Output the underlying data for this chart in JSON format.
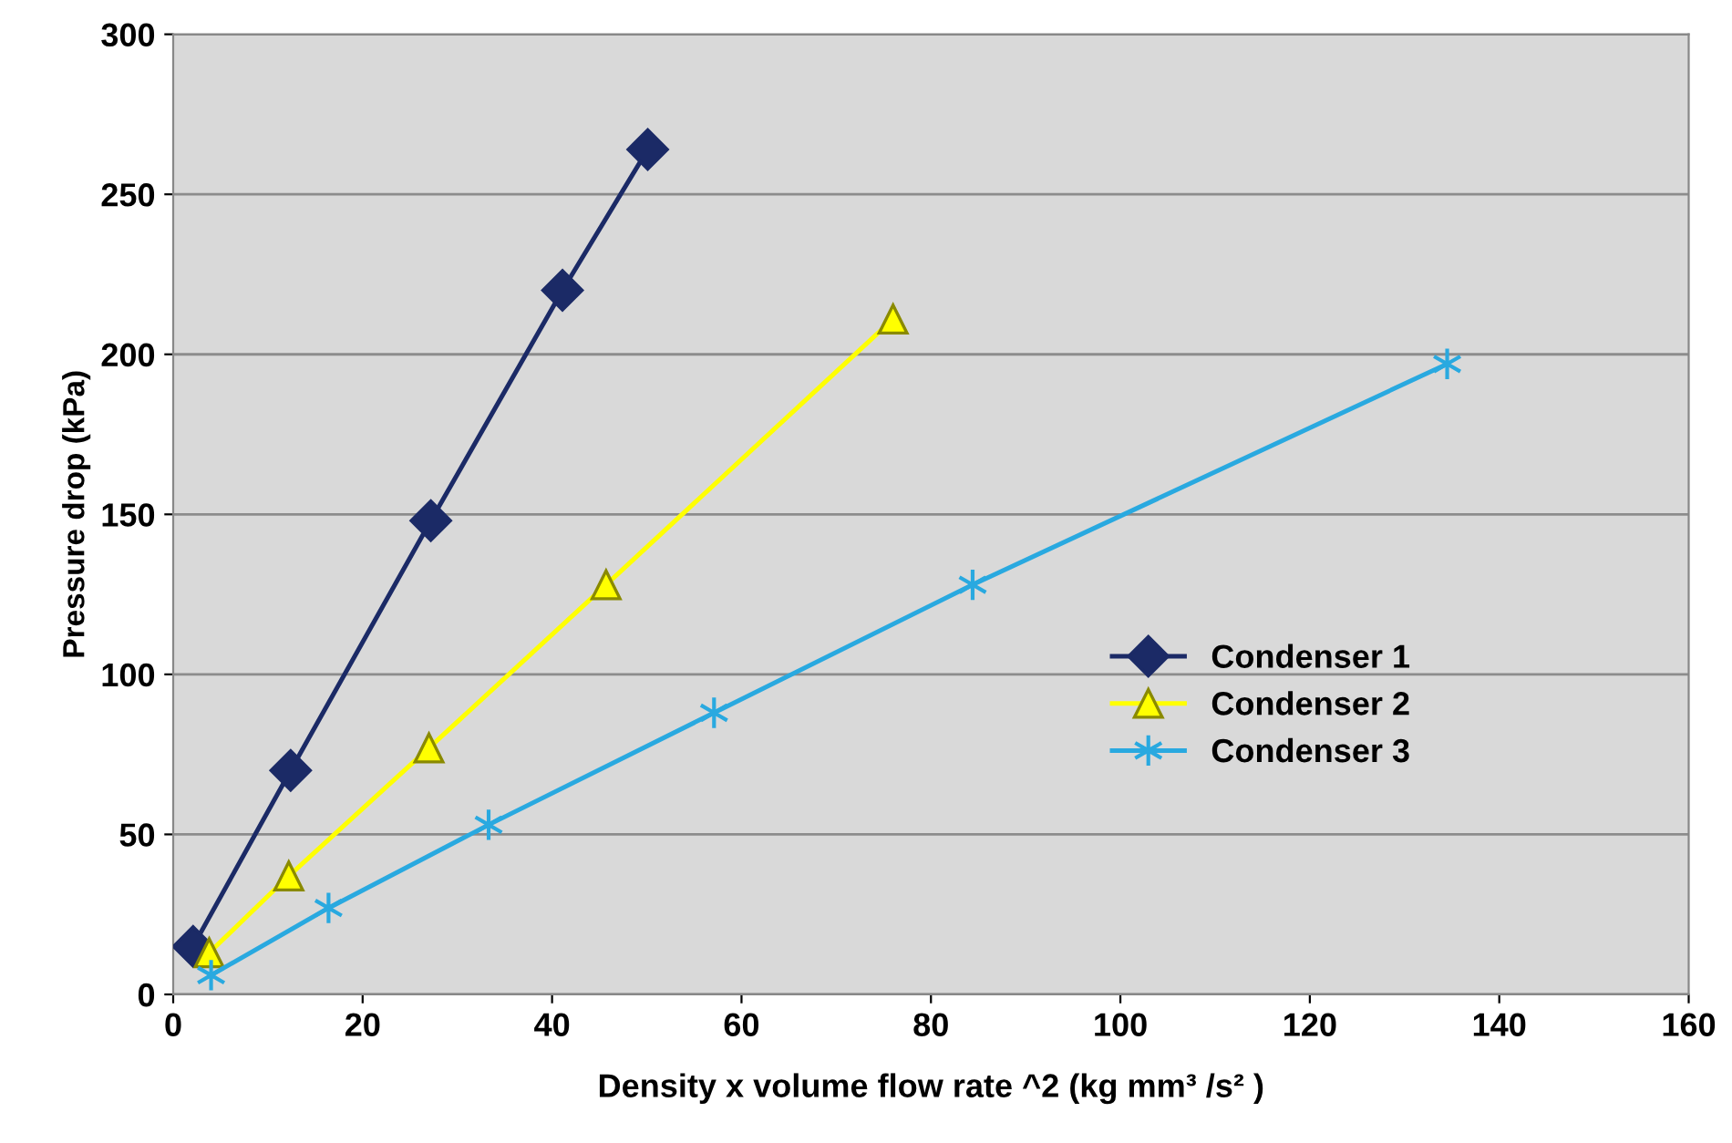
{
  "chart_data": {
    "type": "line",
    "xlabel": "Density x volume flow rate ^2 (kg mm³ /s² )",
    "ylabel": "Pressure drop (kPa)",
    "xlim": [
      0,
      160
    ],
    "xticks": [
      0,
      20,
      40,
      60,
      80,
      100,
      120,
      140,
      160
    ],
    "ylim": [
      0,
      300
    ],
    "yticks": [
      0,
      50,
      100,
      150,
      200,
      250,
      300
    ],
    "grid": "y",
    "legend": "right",
    "series": [
      {
        "name": "Condenser 1",
        "color": "#1b2a66",
        "marker": "diamond",
        "x": [
          2.1,
          12.4,
          27.2,
          41.1,
          50.1
        ],
        "values": [
          15,
          70,
          148,
          220,
          264
        ]
      },
      {
        "name": "Condenser 2",
        "color": "#ffff00",
        "marker": "triangle",
        "x": [
          3.8,
          12.2,
          27,
          45.7,
          76
        ],
        "values": [
          13,
          37,
          77,
          128,
          211
        ]
      },
      {
        "name": "Condenser 3",
        "color": "#29a9e0",
        "marker": "cross",
        "x": [
          4,
          16.4,
          33.3,
          57.1,
          84.4,
          134.5
        ],
        "values": [
          6,
          27,
          53,
          88,
          128,
          197
        ]
      }
    ]
  }
}
